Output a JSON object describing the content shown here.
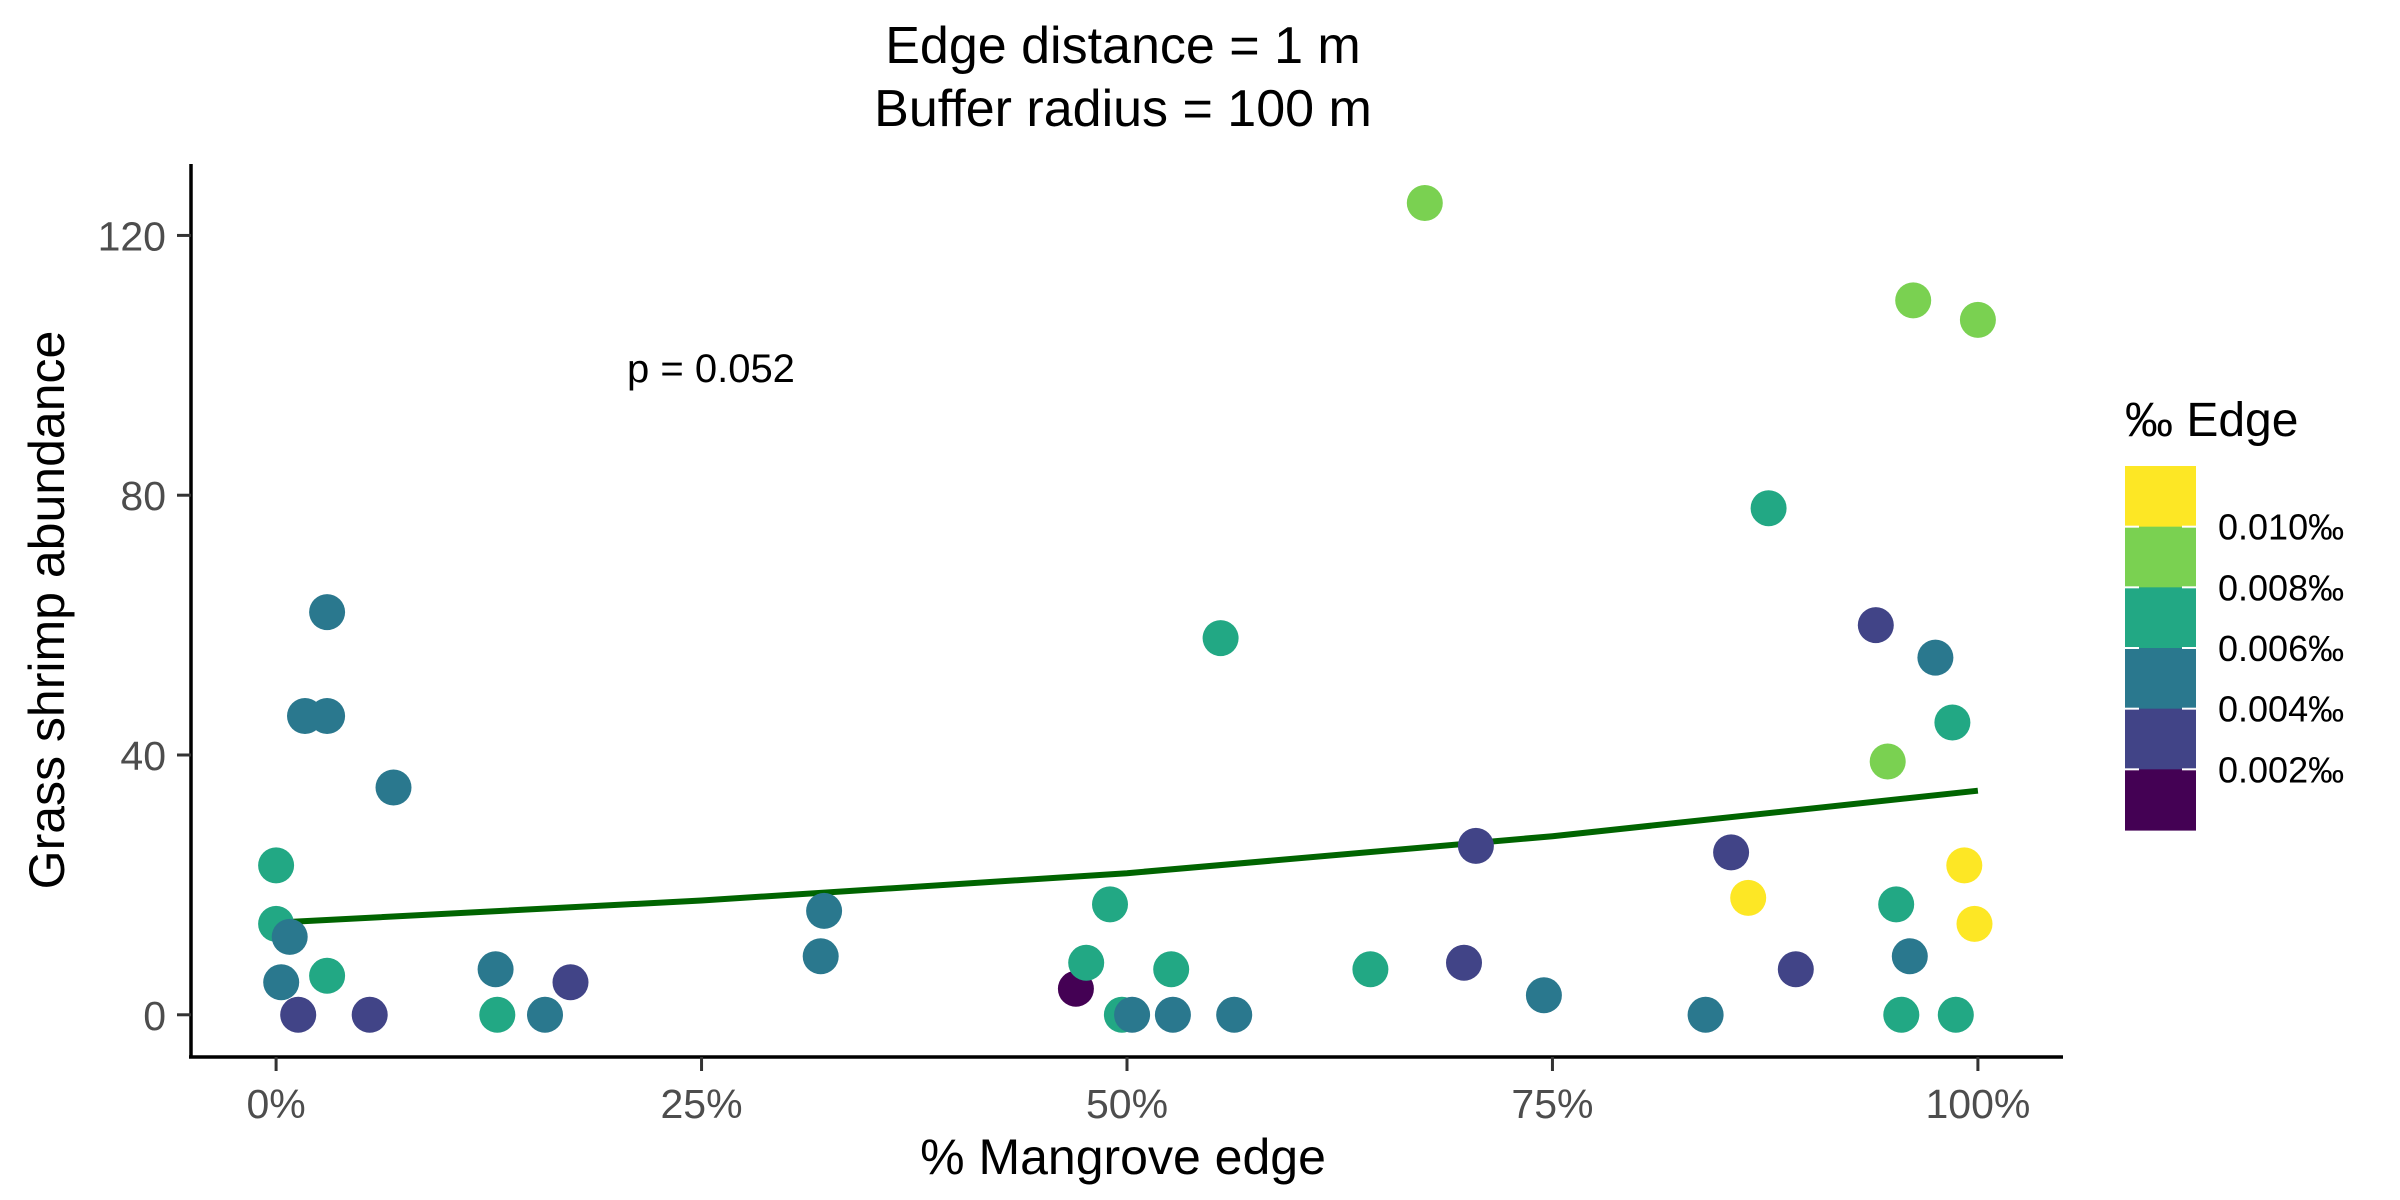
{
  "chart_data": {
    "type": "scatter",
    "title_lines": [
      "Edge distance = 1 m",
      "Buffer radius = 100 m"
    ],
    "xlabel": "% Mangrove edge",
    "ylabel": "Grass shrimp abundance",
    "xlim": [
      -0.05,
      1.05
    ],
    "ylim": [
      -6.5,
      131
    ],
    "x_ticks": [
      0,
      0.25,
      0.5,
      0.75,
      1.0
    ],
    "x_tick_labels": [
      "0%",
      "25%",
      "50%",
      "75%",
      "100%"
    ],
    "y_ticks": [
      0,
      40,
      80,
      120
    ],
    "y_tick_labels": [
      "0",
      "40",
      "80",
      "120"
    ],
    "grid": false,
    "annotation": {
      "text": "p = 0.052",
      "x": 0.255,
      "y": 100
    },
    "trend_line": {
      "color": "#006400",
      "x": [
        0.0,
        0.25,
        0.5,
        0.75,
        1.0
      ],
      "y": [
        14.2,
        17.6,
        21.8,
        27.5,
        34.5
      ]
    },
    "legend": {
      "title": "‰ Edge",
      "position": "right",
      "labels": [
        "0.010‰",
        "0.008‰",
        "0.006‰",
        "0.004‰",
        "0.002‰"
      ],
      "colors_top_to_bottom": [
        "#FDE725",
        "#7AD151",
        "#22A884",
        "#2A788E",
        "#414487",
        "#440154"
      ]
    },
    "points": [
      {
        "x": 0.0,
        "y": 23,
        "color": "#22A884"
      },
      {
        "x": 0.0,
        "y": 14,
        "color": "#22A884"
      },
      {
        "x": 0.003,
        "y": 5,
        "color": "#2A788E"
      },
      {
        "x": 0.008,
        "y": 12,
        "color": "#2A788E"
      },
      {
        "x": 0.013,
        "y": 0,
        "color": "#414487"
      },
      {
        "x": 0.017,
        "y": 46,
        "color": "#2A788E"
      },
      {
        "x": 0.03,
        "y": 46,
        "color": "#2A788E"
      },
      {
        "x": 0.03,
        "y": 62,
        "color": "#2A788E"
      },
      {
        "x": 0.03,
        "y": 6,
        "color": "#22A884"
      },
      {
        "x": 0.055,
        "y": 0,
        "color": "#414487"
      },
      {
        "x": 0.069,
        "y": 35,
        "color": "#2A788E"
      },
      {
        "x": 0.129,
        "y": 7,
        "color": "#2A788E"
      },
      {
        "x": 0.13,
        "y": 0,
        "color": "#22A884"
      },
      {
        "x": 0.158,
        "y": 0,
        "color": "#2A788E"
      },
      {
        "x": 0.173,
        "y": 5,
        "color": "#414487"
      },
      {
        "x": 0.32,
        "y": 9,
        "color": "#2A788E"
      },
      {
        "x": 0.322,
        "y": 16,
        "color": "#2A788E"
      },
      {
        "x": 0.47,
        "y": 4,
        "color": "#440154"
      },
      {
        "x": 0.476,
        "y": 8,
        "color": "#22A884"
      },
      {
        "x": 0.49,
        "y": 17,
        "color": "#22A884"
      },
      {
        "x": 0.497,
        "y": 0,
        "color": "#22A884"
      },
      {
        "x": 0.503,
        "y": 0,
        "color": "#2A788E"
      },
      {
        "x": 0.526,
        "y": 7,
        "color": "#22A884"
      },
      {
        "x": 0.527,
        "y": 0,
        "color": "#2A788E"
      },
      {
        "x": 0.555,
        "y": 58,
        "color": "#22A884"
      },
      {
        "x": 0.563,
        "y": 0,
        "color": "#2A788E"
      },
      {
        "x": 0.643,
        "y": 7,
        "color": "#22A884"
      },
      {
        "x": 0.675,
        "y": 125,
        "color": "#7AD151"
      },
      {
        "x": 0.698,
        "y": 8,
        "color": "#414487"
      },
      {
        "x": 0.705,
        "y": 26,
        "color": "#414487"
      },
      {
        "x": 0.745,
        "y": 3,
        "color": "#2A788E"
      },
      {
        "x": 0.84,
        "y": 0,
        "color": "#2A788E"
      },
      {
        "x": 0.855,
        "y": 25,
        "color": "#414487"
      },
      {
        "x": 0.865,
        "y": 18,
        "color": "#FDE725"
      },
      {
        "x": 0.877,
        "y": 78,
        "color": "#22A884"
      },
      {
        "x": 0.893,
        "y": 7,
        "color": "#414487"
      },
      {
        "x": 0.94,
        "y": 60,
        "color": "#414487"
      },
      {
        "x": 0.947,
        "y": 39,
        "color": "#7AD151"
      },
      {
        "x": 0.952,
        "y": 17,
        "color": "#22A884"
      },
      {
        "x": 0.955,
        "y": 0,
        "color": "#22A884"
      },
      {
        "x": 0.96,
        "y": 9,
        "color": "#2A788E"
      },
      {
        "x": 0.962,
        "y": 110,
        "color": "#7AD151"
      },
      {
        "x": 0.975,
        "y": 55,
        "color": "#2A788E"
      },
      {
        "x": 0.985,
        "y": 45,
        "color": "#22A884"
      },
      {
        "x": 0.987,
        "y": 0,
        "color": "#22A884"
      },
      {
        "x": 0.992,
        "y": 23,
        "color": "#FDE725"
      },
      {
        "x": 0.998,
        "y": 14,
        "color": "#FDE725"
      },
      {
        "x": 1.0,
        "y": 107,
        "color": "#7AD151"
      }
    ]
  }
}
